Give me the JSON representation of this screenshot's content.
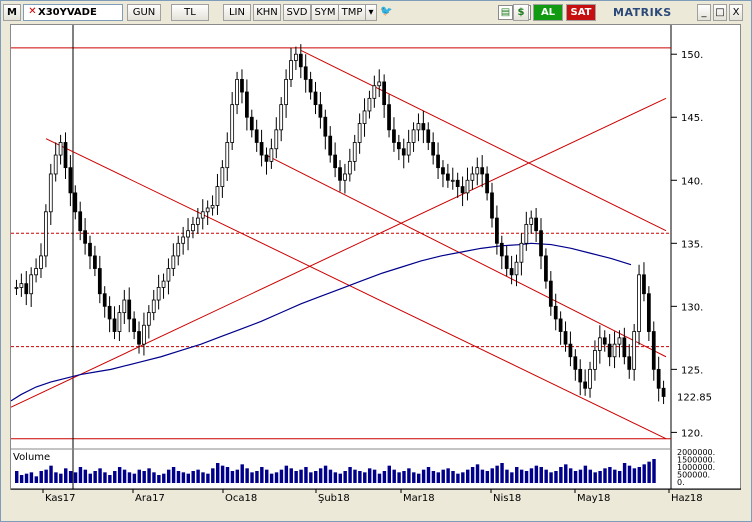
{
  "toolbar": {
    "menu_letter": "M",
    "symbol": "X30YVADE",
    "buttons": [
      "GUN",
      "TL",
      "LIN",
      "KHN",
      "SVD",
      "SYM",
      "TMP"
    ],
    "buy_label": "AL",
    "sell_label": "SAT",
    "brand": "MATRIKS",
    "window_buttons": [
      "_",
      "□",
      "X"
    ]
  },
  "volume_label": "Volume",
  "colors": {
    "up": "#ffffff",
    "down": "#000000",
    "trend": "#cc0000",
    "ma": "#00008b",
    "volume": "#00008b",
    "last_price_bg": "#000000"
  },
  "chart_data": {
    "type": "candlestick",
    "ylim": [
      119,
      152
    ],
    "y_ticks": [
      120,
      125,
      130,
      135,
      140,
      145,
      150
    ],
    "last_price": 122.85,
    "x_labels": [
      "Kas17",
      "Ara17",
      "Oca18",
      "Şub18",
      "Mar18",
      "Nis18",
      "May18",
      "Haz18"
    ],
    "volume_ticks": [
      "2000000.",
      "1500000.",
      "1000000.",
      "500000.",
      "0."
    ],
    "horizontal_levels": [
      150.5,
      135.8,
      126.8,
      119.5
    ],
    "closes": [
      131.5,
      131.8,
      131.0,
      132.5,
      133.0,
      134.0,
      137.5,
      140.5,
      142.0,
      143.0,
      141.0,
      139.0,
      137.5,
      136.0,
      135.0,
      134.0,
      133.0,
      131.0,
      130.0,
      129.0,
      128.0,
      129.5,
      130.5,
      129.0,
      128.0,
      127.0,
      128.5,
      129.5,
      130.5,
      131.5,
      132.0,
      133.0,
      134.0,
      135.0,
      135.5,
      136.0,
      136.5,
      137.0,
      137.5,
      137.8,
      138.0,
      139.5,
      141.0,
      143.0,
      146.0,
      148.0,
      147.0,
      145.0,
      144.0,
      143.0,
      142.0,
      141.5,
      142.5,
      144.0,
      146.0,
      148.0,
      149.5,
      150.0,
      149.0,
      148.0,
      147.0,
      146.0,
      145.0,
      143.5,
      142.0,
      141.0,
      140.0,
      140.5,
      141.5,
      143.0,
      144.5,
      145.5,
      146.5,
      147.5,
      147.8,
      146.0,
      144.0,
      143.0,
      142.5,
      142.0,
      143.0,
      144.0,
      144.5,
      144.0,
      143.0,
      142.0,
      141.0,
      140.5,
      140.0,
      140.0,
      139.5,
      139.0,
      140.0,
      140.5,
      141.0,
      140.5,
      139.0,
      137.0,
      135.0,
      134.0,
      133.0,
      132.5,
      133.5,
      135.0,
      136.5,
      137.0,
      136.0,
      134.0,
      132.0,
      130.0,
      129.0,
      128.0,
      127.0,
      126.0,
      125.0,
      124.0,
      123.5,
      125.0,
      126.5,
      127.5,
      127.0,
      126.0,
      127.0,
      127.5,
      126.0,
      125.0,
      128.0,
      132.5,
      131.0,
      128.0,
      125.0,
      123.5,
      122.85
    ],
    "ma_values": [
      122.5,
      123.0,
      123.6,
      124.0,
      124.3,
      124.6,
      124.8,
      125.0,
      125.3,
      125.6,
      126.0,
      126.5,
      127.0,
      127.6,
      128.2,
      128.8,
      129.5,
      130.2,
      130.8,
      131.4,
      132.0,
      132.6,
      133.1,
      133.6,
      134.0,
      134.3,
      134.6,
      134.8,
      134.9,
      135.0,
      134.9,
      134.6,
      134.2,
      133.8,
      133.3
    ],
    "ma_x": [
      0,
      10,
      25,
      40,
      55,
      70,
      85,
      100,
      115,
      130,
      150,
      170,
      190,
      210,
      230,
      250,
      270,
      290,
      310,
      330,
      350,
      370,
      390,
      410,
      430,
      450,
      470,
      490,
      510,
      520,
      540,
      560,
      580,
      600,
      620
    ],
    "trend_lines": [
      [
        [
          0,
          122.0
        ],
        [
          655,
          146.5
        ]
      ],
      [
        [
          35,
          143.3
        ],
        [
          655,
          119.5
        ]
      ],
      [
        [
          290,
          150.3
        ],
        [
          655,
          136.0
        ]
      ],
      [
        [
          255,
          142.0
        ],
        [
          655,
          126.0
        ]
      ]
    ],
    "volumes": [
      0.9,
      0.6,
      0.7,
      0.8,
      0.5,
      0.9,
      1.0,
      1.3,
      0.8,
      0.7,
      1.1,
      0.9,
      0.8,
      1.2,
      1.0,
      0.7,
      0.9,
      1.1,
      0.8,
      0.6,
      0.9,
      1.2,
      1.0,
      0.8,
      0.7,
      1.0,
      0.9,
      1.1,
      0.8,
      0.6,
      0.7,
      1.0,
      1.2,
      0.9,
      0.8,
      0.7,
      0.9,
      1.0,
      0.8,
      0.7,
      1.1,
      1.5,
      1.3,
      1.2,
      0.9,
      1.0,
      1.4,
      1.1,
      0.8,
      0.9,
      1.2,
      1.0,
      0.7,
      0.8,
      1.0,
      1.3,
      1.1,
      0.9,
      1.0,
      1.2,
      0.8,
      0.9,
      1.1,
      1.3,
      1.0,
      0.8,
      0.7,
      0.9,
      1.2,
      1.0,
      0.9,
      0.8,
      1.1,
      1.0,
      0.7,
      0.9,
      1.3,
      1.0,
      0.8,
      0.9,
      1.1,
      0.8,
      0.7,
      1.0,
      1.2,
      0.9,
      0.8,
      1.0,
      1.1,
      0.9,
      0.7,
      0.8,
      1.0,
      1.2,
      1.4,
      1.0,
      0.9,
      1.1,
      1.3,
      1.5,
      1.0,
      0.8,
      1.2,
      1.0,
      0.9,
      1.1,
      1.3,
      1.2,
      1.0,
      0.8,
      0.9,
      1.2,
      1.4,
      1.1,
      0.9,
      1.0,
      1.3,
      1.0,
      0.8,
      0.9,
      1.1,
      1.2,
      1.0,
      0.9,
      1.5,
      1.3,
      1.1,
      1.2,
      1.4,
      1.6,
      1.8
    ]
  }
}
